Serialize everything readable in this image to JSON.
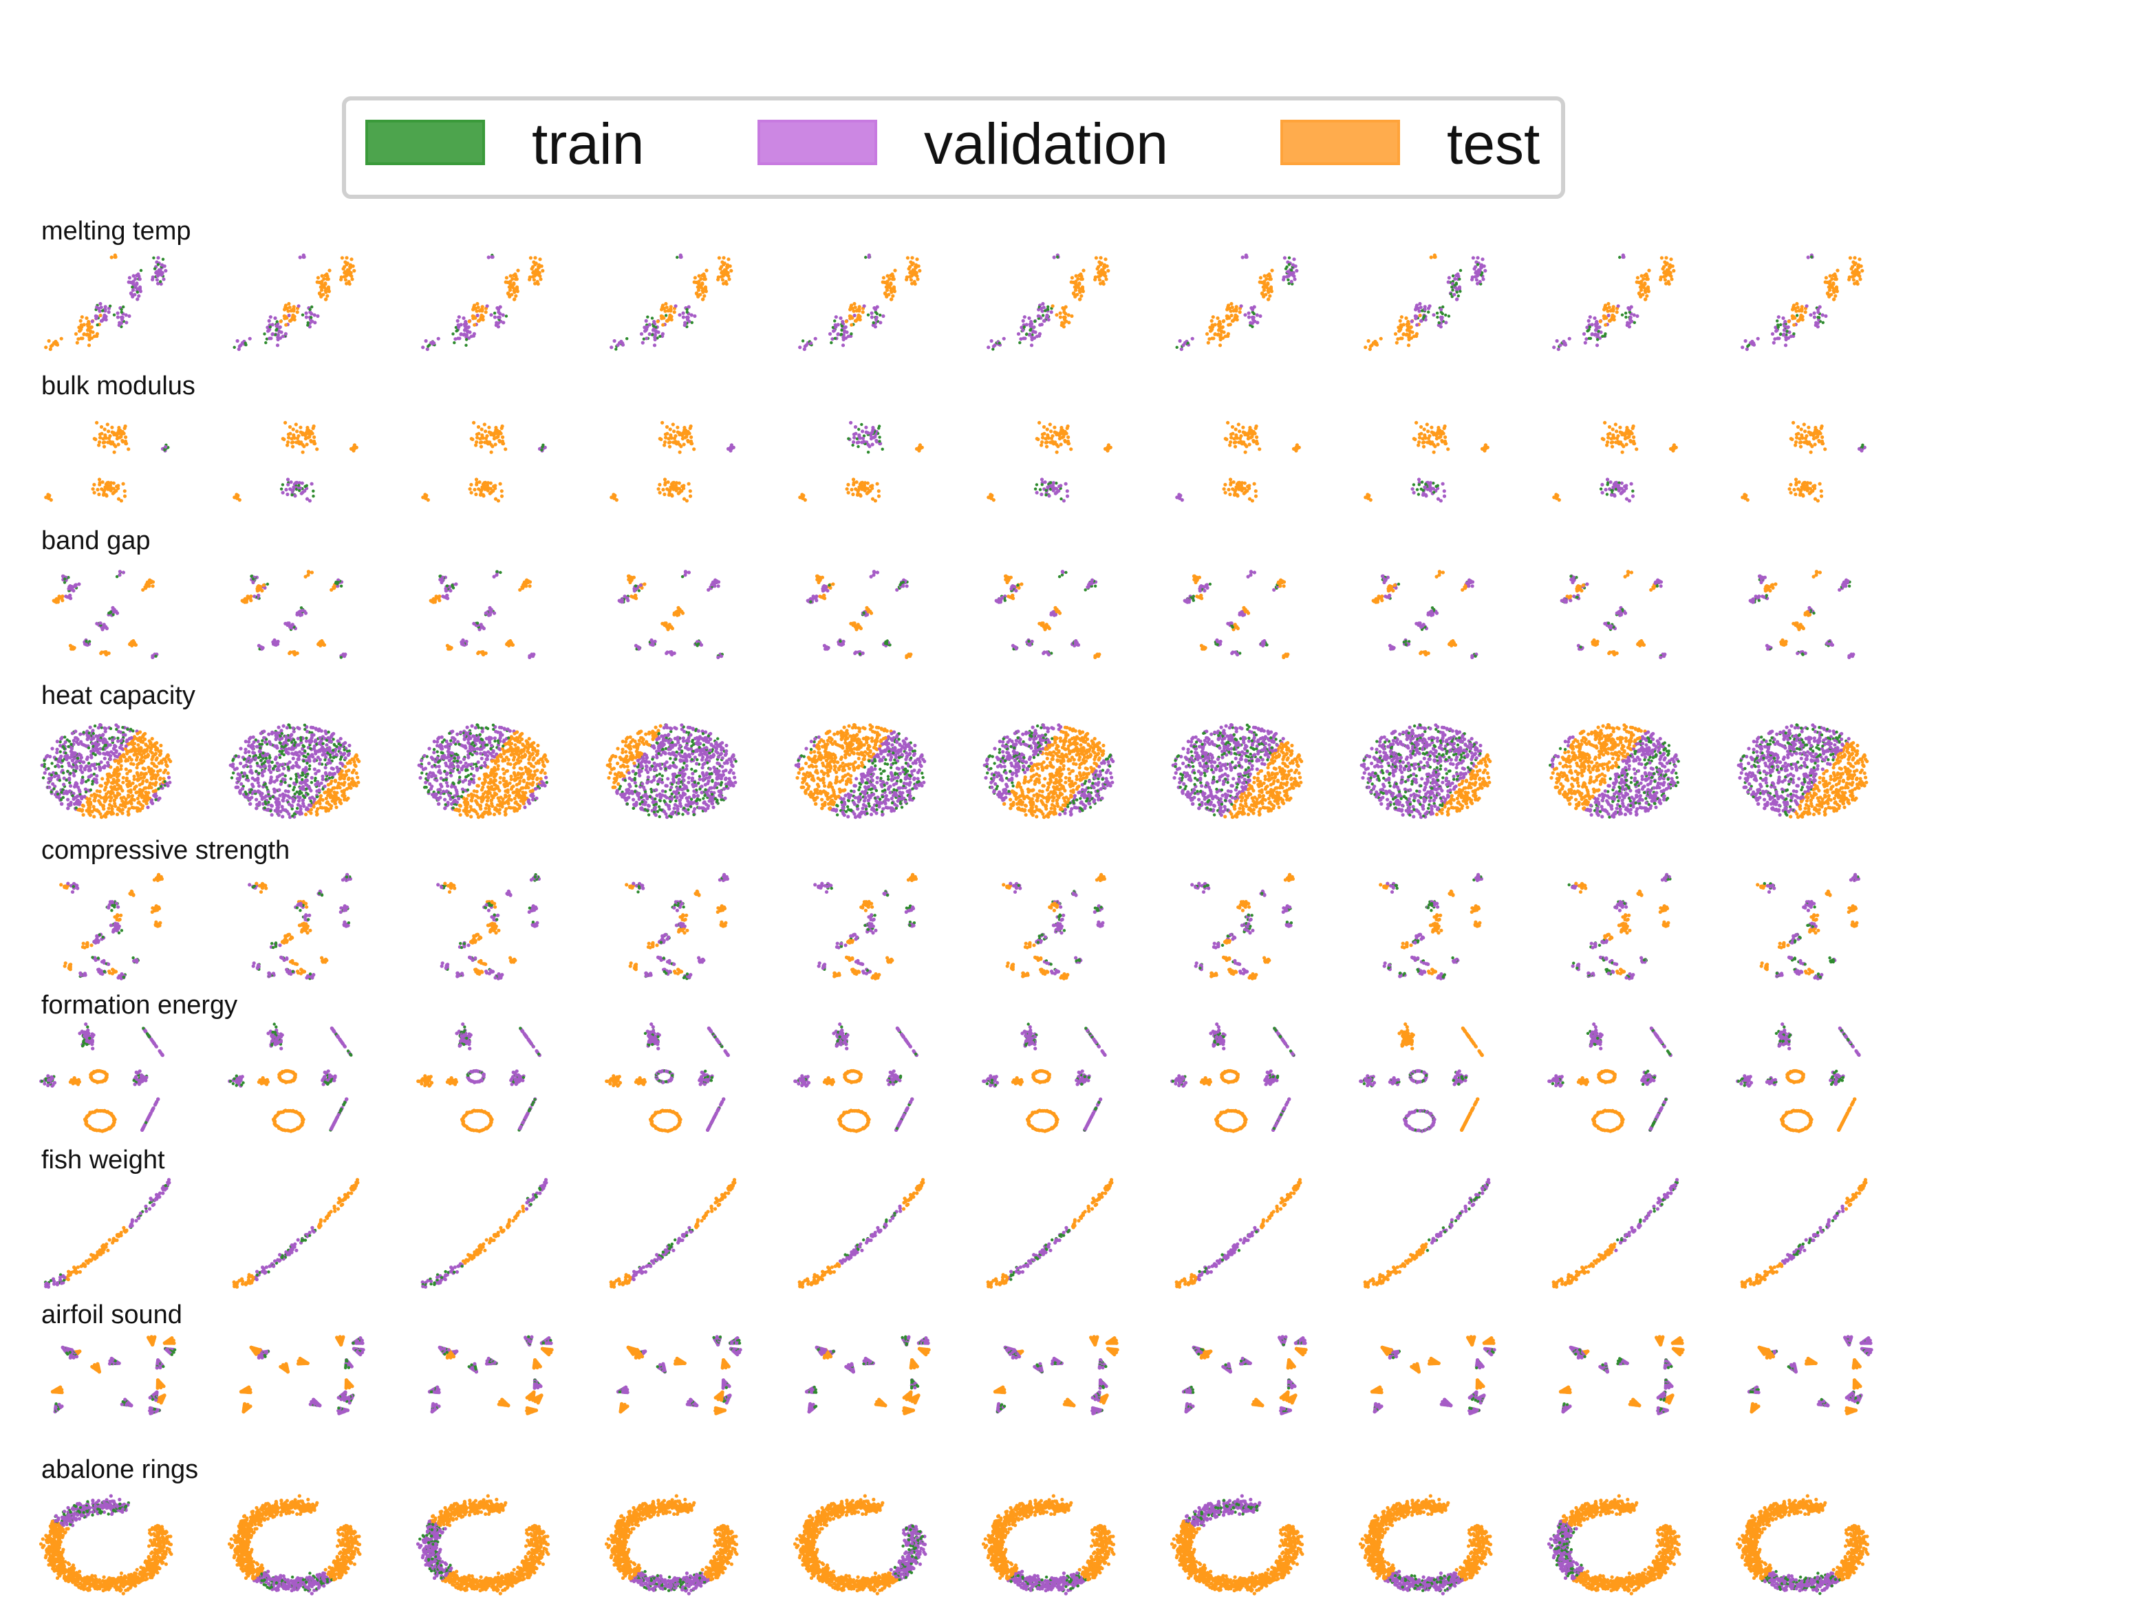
{
  "chart_data": {
    "type": "scatter",
    "legend": {
      "placement": "top-center",
      "entries": [
        {
          "label": "train",
          "color": "#3a9a3a"
        },
        {
          "label": "validation",
          "color": "#c77ae0"
        },
        {
          "label": "test",
          "color": "#ffa33a"
        }
      ]
    },
    "rows": [
      {
        "label": "melting temp",
        "shape": "tail"
      },
      {
        "label": "bulk modulus",
        "shape": "blobs"
      },
      {
        "label": "band gap",
        "shape": "clusters"
      },
      {
        "label": "heat capacity",
        "shape": "disk"
      },
      {
        "label": "compressive strength",
        "shape": "scatter"
      },
      {
        "label": "formation energy",
        "shape": "rings"
      },
      {
        "label": "fish weight",
        "shape": "line"
      },
      {
        "label": "airfoil sound",
        "shape": "fans"
      },
      {
        "label": "abalone rings",
        "shape": "hook"
      }
    ],
    "columns": 10,
    "axes": "off",
    "grid": false
  }
}
